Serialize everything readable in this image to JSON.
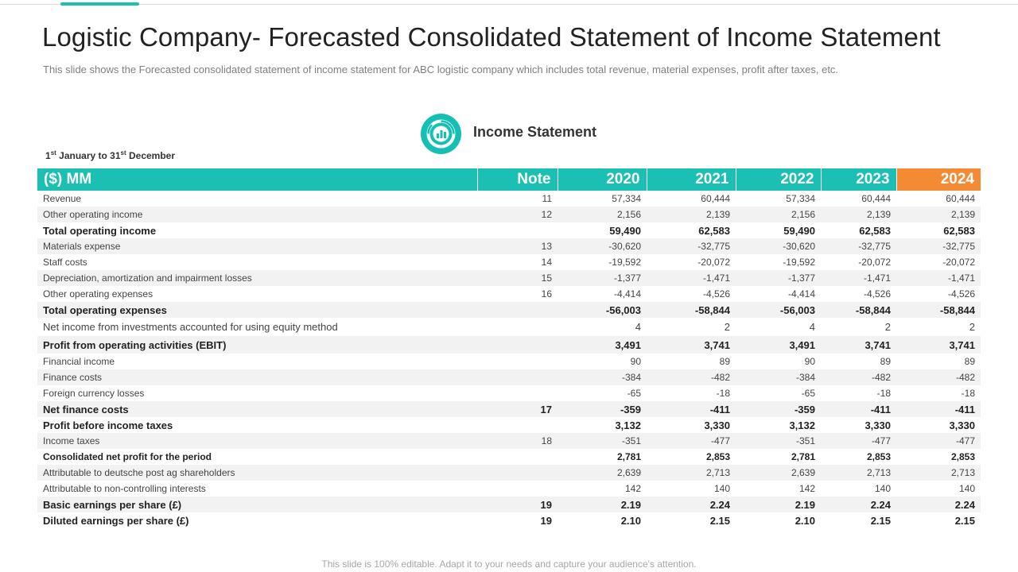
{
  "slide": {
    "title": "Logistic Company- Forecasted Consolidated Statement of Income Statement",
    "subtitle": "This slide shows the Forecasted consolidated statement of income statement for ABC logistic company which includes total revenue, material expenses, profit after taxes, etc.",
    "section_title": "Income Statement",
    "icon": "chart-circle-icon",
    "period": {
      "start_day": "1",
      "start_suffix": "st",
      "start_rest": " January to 31",
      "end_suffix": "st",
      "end_rest": " December"
    },
    "footer": "This slide is 100% editable. Adapt it to your needs and capture your audience's attention."
  },
  "colors": {
    "teal": "#1bbfb3",
    "orange": "#f58a34"
  },
  "table": {
    "headers": [
      "($) MM",
      "Note",
      "2020",
      "2021",
      "2022",
      "2023",
      "2024"
    ],
    "rows": [
      {
        "label": "Revenue",
        "note": "11",
        "values": [
          "57,334",
          "60,444",
          "57,334",
          "60,444",
          "60,444"
        ]
      },
      {
        "label": "Other operating income",
        "note": "12",
        "values": [
          "2,156",
          "2,139",
          "2,156",
          "2,139",
          "2,139"
        ]
      },
      {
        "label": "Total operating income",
        "note": "",
        "values": [
          "59,490",
          "62,583",
          "59,490",
          "62,583",
          "62,583"
        ]
      },
      {
        "label": "Materials expense",
        "note": "13",
        "values": [
          "-30,620",
          "-32,775",
          "-30,620",
          "-32,775",
          "-32,775"
        ]
      },
      {
        "label": "Staff costs",
        "note": "14",
        "values": [
          "-19,592",
          "-20,072",
          "-19,592",
          "-20,072",
          "-20,072"
        ]
      },
      {
        "label": "Depreciation, amortization and impairment losses",
        "note": "15",
        "values": [
          "-1,377",
          "-1,471",
          "-1,377",
          "-1,471",
          "-1,471"
        ]
      },
      {
        "label": "Other operating expenses",
        "note": "16",
        "values": [
          "-4,414",
          "-4,526",
          "-4,414",
          "-4,526",
          "-4,526"
        ]
      },
      {
        "label": "Total operating expenses",
        "note": "",
        "values": [
          "-56,003",
          "-58,844",
          "-56,003",
          "-58,844",
          "-58,844"
        ]
      },
      {
        "label": "Net income from investments accounted for using equity method",
        "note": "",
        "values": [
          "4",
          "2",
          "4",
          "2",
          "2"
        ]
      },
      {
        "label": "Profit from operating activities (EBIT)",
        "note": "",
        "values": [
          "3,491",
          "3,741",
          "3,491",
          "3,741",
          "3,741"
        ]
      },
      {
        "label": "Financial income",
        "note": "",
        "values": [
          "90",
          "89",
          "90",
          "89",
          "89"
        ]
      },
      {
        "label": "Finance costs",
        "note": "",
        "values": [
          "-384",
          "-482",
          "-384",
          "-482",
          "-482"
        ]
      },
      {
        "label": "Foreign currency losses",
        "note": "",
        "values": [
          "-65",
          "-18",
          "-65",
          "-18",
          "-18"
        ]
      },
      {
        "label": "Net finance costs",
        "note": "17",
        "values": [
          "-359",
          "-411",
          "-359",
          "-411",
          "-411"
        ]
      },
      {
        "label": "Profit before income taxes",
        "note": "",
        "values": [
          "3,132",
          "3,330",
          "3,132",
          "3,330",
          "3,330"
        ]
      },
      {
        "label": "Income taxes",
        "note": "18",
        "values": [
          "-351",
          "-477",
          "-351",
          "-477",
          "-477"
        ]
      },
      {
        "label": "Consolidated net profit for the period",
        "note": "",
        "values": [
          "2,781",
          "2,853",
          "2,781",
          "2,853",
          "2,853"
        ]
      },
      {
        "label": "Attributable to deutsche post ag shareholders",
        "note": "",
        "values": [
          "2,639",
          "2,713",
          "2,639",
          "2,713",
          "2,713"
        ]
      },
      {
        "label": "Attributable to non-controlling interests",
        "note": "",
        "values": [
          "142",
          "140",
          "142",
          "140",
          "140"
        ]
      },
      {
        "label": "Basic earnings per share (£)",
        "note": "19",
        "values": [
          "2.19",
          "2.24",
          "2.19",
          "2.24",
          "2.24"
        ]
      },
      {
        "label": "Diluted earnings per share (£)",
        "note": "19",
        "values": [
          "2.10",
          "2.15",
          "2.10",
          "2.15",
          "2.15"
        ]
      }
    ]
  }
}
